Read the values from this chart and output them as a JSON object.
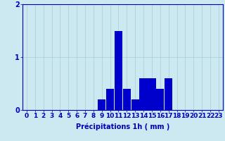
{
  "hours": [
    0,
    1,
    2,
    3,
    4,
    5,
    6,
    7,
    8,
    9,
    10,
    11,
    12,
    13,
    14,
    15,
    16,
    17,
    18,
    19,
    20,
    21,
    22,
    23
  ],
  "values": [
    0,
    0,
    0,
    0,
    0,
    0,
    0,
    0,
    0,
    0.2,
    0.4,
    1.5,
    0.4,
    0.2,
    0.6,
    0.6,
    0.4,
    0.6,
    0,
    0,
    0,
    0,
    0,
    0
  ],
  "bar_color": "#0000cc",
  "background_color": "#cce8f0",
  "grid_color": "#aaccd4",
  "axis_color": "#0000bb",
  "xlabel": "Précipitations 1h ( mm )",
  "ylim": [
    0,
    2
  ],
  "yticks": [
    0,
    1,
    2
  ],
  "xlabel_fontsize": 7,
  "tick_fontsize": 6.5
}
